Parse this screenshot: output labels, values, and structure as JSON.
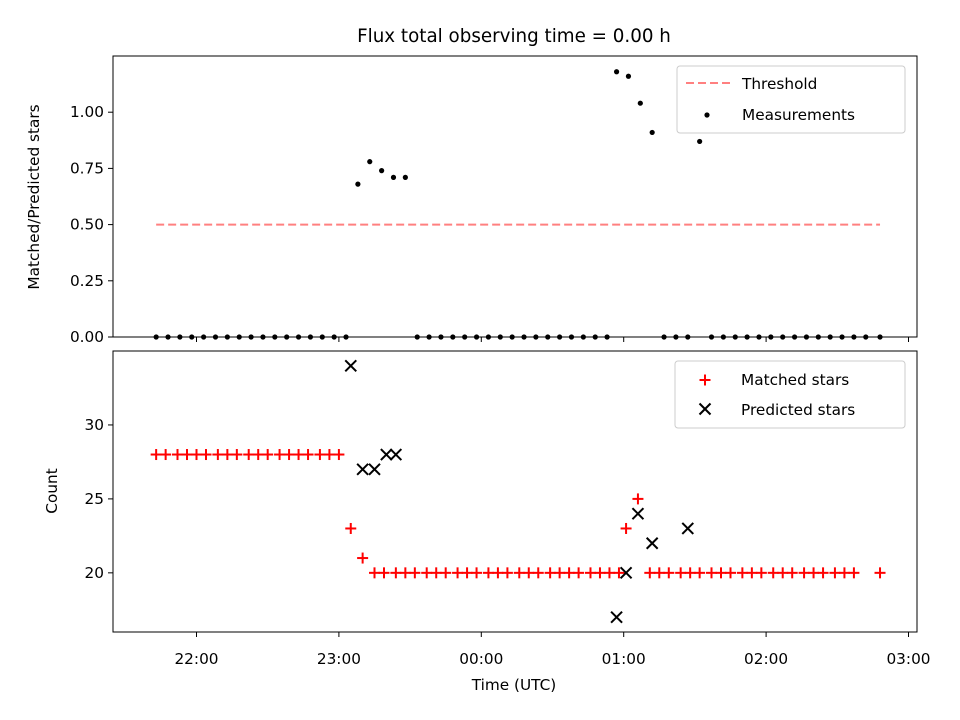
{
  "chart_data": {
    "title": "Flux total observing time = 0.00 h",
    "xlabel": "Time (UTC)",
    "x_ticks": [
      "22:00",
      "23:00",
      "00:00",
      "01:00",
      "02:00",
      "03:00"
    ],
    "top": {
      "type": "scatter",
      "ylabel": "Matched/Predicted stars",
      "ylim": [
        0,
        1.25
      ],
      "y_ticks": [
        "0.00",
        "0.25",
        "0.50",
        "0.75",
        "1.00"
      ],
      "threshold": {
        "name": "Threshold",
        "value": 0.5,
        "x_start": "21:43",
        "x_end": "02:48",
        "color": "#ff8080"
      },
      "measurements": {
        "name": "Measurements",
        "color": "#000000",
        "points": [
          [
            "21:43",
            0
          ],
          [
            "21:48",
            0
          ],
          [
            "21:53",
            0
          ],
          [
            "21:58",
            0
          ],
          [
            "22:03",
            0
          ],
          [
            "22:08",
            0
          ],
          [
            "22:13",
            0
          ],
          [
            "22:18",
            0
          ],
          [
            "22:23",
            0
          ],
          [
            "22:28",
            0
          ],
          [
            "22:33",
            0
          ],
          [
            "22:38",
            0
          ],
          [
            "22:43",
            0
          ],
          [
            "22:48",
            0
          ],
          [
            "22:53",
            0
          ],
          [
            "22:58",
            0
          ],
          [
            "23:03",
            0
          ],
          [
            "23:08",
            0.68
          ],
          [
            "23:13",
            0.78
          ],
          [
            "23:18",
            0.74
          ],
          [
            "23:23",
            0.71
          ],
          [
            "23:28",
            0.71
          ],
          [
            "23:33",
            0
          ],
          [
            "23:38",
            0
          ],
          [
            "23:43",
            0
          ],
          [
            "23:48",
            0
          ],
          [
            "23:53",
            0
          ],
          [
            "23:58",
            0
          ],
          [
            "00:03",
            0
          ],
          [
            "00:08",
            0
          ],
          [
            "00:13",
            0
          ],
          [
            "00:18",
            0
          ],
          [
            "00:23",
            0
          ],
          [
            "00:28",
            0
          ],
          [
            "00:33",
            0
          ],
          [
            "00:38",
            0
          ],
          [
            "00:43",
            0
          ],
          [
            "00:48",
            0
          ],
          [
            "00:53",
            0
          ],
          [
            "00:57",
            1.18
          ],
          [
            "01:02",
            1.16
          ],
          [
            "01:07",
            1.04
          ],
          [
            "01:12",
            0.91
          ],
          [
            "01:17",
            0
          ],
          [
            "01:22",
            0
          ],
          [
            "01:27",
            0
          ],
          [
            "01:32",
            0.87
          ],
          [
            "01:37",
            0
          ],
          [
            "01:42",
            0
          ],
          [
            "01:47",
            0
          ],
          [
            "01:52",
            0
          ],
          [
            "01:57",
            0
          ],
          [
            "02:02",
            0
          ],
          [
            "02:07",
            0
          ],
          [
            "02:12",
            0
          ],
          [
            "02:17",
            0
          ],
          [
            "02:22",
            0
          ],
          [
            "02:27",
            0
          ],
          [
            "02:32",
            0
          ],
          [
            "02:37",
            0
          ],
          [
            "02:42",
            0
          ],
          [
            "02:48",
            0
          ]
        ]
      },
      "legend_position": "upper right"
    },
    "bottom": {
      "type": "scatter",
      "ylabel": "Count",
      "ylim": [
        16,
        35
      ],
      "y_ticks": [
        "20",
        "25",
        "30"
      ],
      "series": [
        {
          "name": "Matched stars",
          "marker": "+",
          "color": "#ff0000",
          "points": [
            [
              "21:43",
              28
            ],
            [
              "21:47",
              28
            ],
            [
              "21:52",
              28
            ],
            [
              "21:56",
              28
            ],
            [
              "22:00",
              28
            ],
            [
              "22:04",
              28
            ],
            [
              "22:09",
              28
            ],
            [
              "22:13",
              28
            ],
            [
              "22:17",
              28
            ],
            [
              "22:22",
              28
            ],
            [
              "22:26",
              28
            ],
            [
              "22:30",
              28
            ],
            [
              "22:35",
              28
            ],
            [
              "22:39",
              28
            ],
            [
              "22:43",
              28
            ],
            [
              "22:47",
              28
            ],
            [
              "22:52",
              28
            ],
            [
              "22:56",
              28
            ],
            [
              "23:00",
              28
            ],
            [
              "23:05",
              23
            ],
            [
              "23:10",
              21
            ],
            [
              "23:15",
              20
            ],
            [
              "23:19",
              20
            ],
            [
              "23:24",
              20
            ],
            [
              "23:28",
              20
            ],
            [
              "23:32",
              20
            ],
            [
              "23:37",
              20
            ],
            [
              "23:41",
              20
            ],
            [
              "23:45",
              20
            ],
            [
              "23:50",
              20
            ],
            [
              "23:54",
              20
            ],
            [
              "23:58",
              20
            ],
            [
              "00:03",
              20
            ],
            [
              "00:07",
              20
            ],
            [
              "00:11",
              20
            ],
            [
              "00:16",
              20
            ],
            [
              "00:20",
              20
            ],
            [
              "00:24",
              20
            ],
            [
              "00:29",
              20
            ],
            [
              "00:33",
              20
            ],
            [
              "00:37",
              20
            ],
            [
              "00:41",
              20
            ],
            [
              "00:46",
              20
            ],
            [
              "00:50",
              20
            ],
            [
              "00:54",
              20
            ],
            [
              "00:58",
              20
            ],
            [
              "01:01",
              23
            ],
            [
              "01:06",
              25
            ],
            [
              "01:11",
              20
            ],
            [
              "01:15",
              20
            ],
            [
              "01:19",
              20
            ],
            [
              "01:24",
              20
            ],
            [
              "01:28",
              20
            ],
            [
              "01:32",
              20
            ],
            [
              "01:37",
              20
            ],
            [
              "01:41",
              20
            ],
            [
              "01:45",
              20
            ],
            [
              "01:50",
              20
            ],
            [
              "01:54",
              20
            ],
            [
              "01:58",
              20
            ],
            [
              "02:03",
              20
            ],
            [
              "02:07",
              20
            ],
            [
              "02:11",
              20
            ],
            [
              "02:16",
              20
            ],
            [
              "02:20",
              20
            ],
            [
              "02:24",
              20
            ],
            [
              "02:29",
              20
            ],
            [
              "02:33",
              20
            ],
            [
              "02:37",
              20
            ],
            [
              "02:48",
              20
            ]
          ]
        },
        {
          "name": "Predicted stars",
          "marker": "x",
          "color": "#000000",
          "points": [
            [
              "23:05",
              34
            ],
            [
              "23:10",
              27
            ],
            [
              "23:15",
              27
            ],
            [
              "23:20",
              28
            ],
            [
              "23:24",
              28
            ],
            [
              "00:57",
              17
            ],
            [
              "01:01",
              20
            ],
            [
              "01:06",
              24
            ],
            [
              "01:12",
              22
            ],
            [
              "01:27",
              23
            ]
          ]
        }
      ],
      "legend_position": "upper right"
    }
  }
}
